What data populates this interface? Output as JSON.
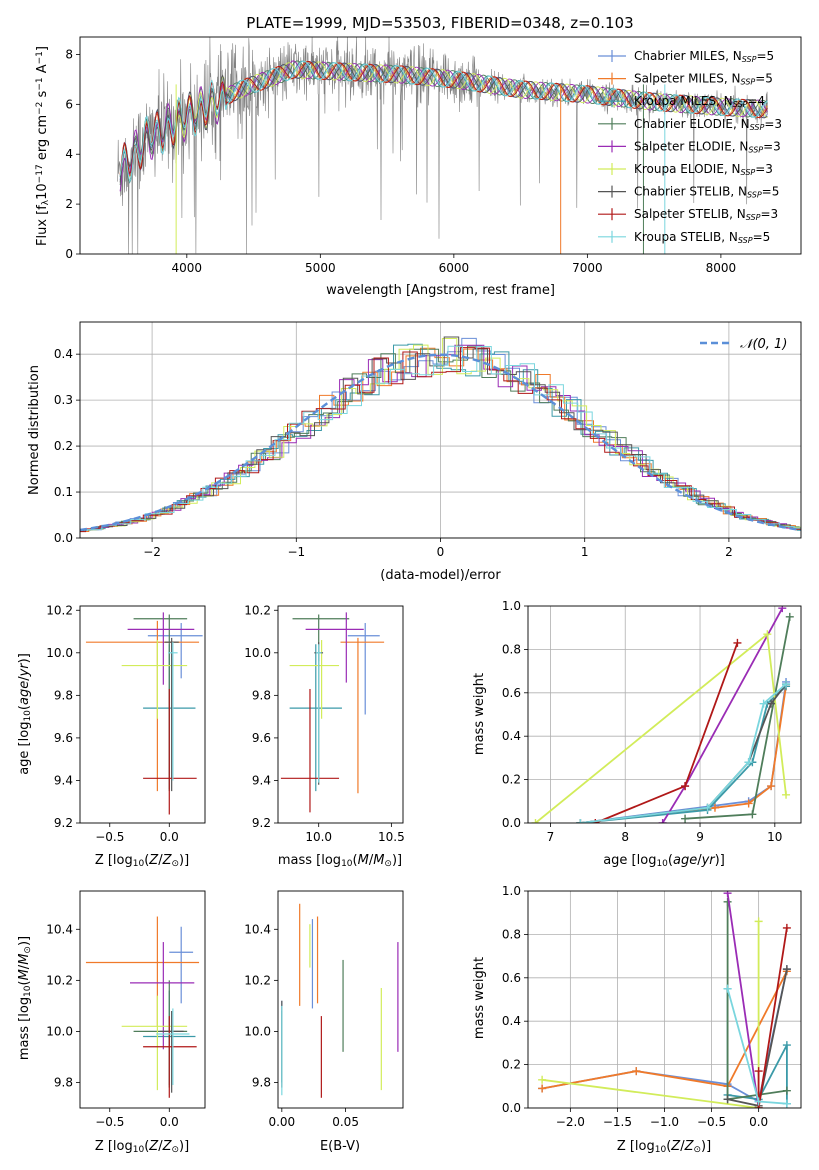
{
  "figure_title": "PLATE=1999, MJD=53503, FIBERID=0348, z=0.103",
  "series": [
    {
      "name": "Chabrier MILES",
      "sub": "SSP",
      "n": "5",
      "color": "#6a8fd8"
    },
    {
      "name": "Salpeter MILES",
      "sub": "SSP",
      "n": "5",
      "color": "#f07a2a"
    },
    {
      "name": "Kroupa MILES",
      "sub": "SSP",
      "n": "4",
      "color": "#3b9aa8"
    },
    {
      "name": "Chabrier ELODIE",
      "sub": "SSP",
      "n": "3",
      "color": "#4f7d5a"
    },
    {
      "name": "Salpeter ELODIE",
      "sub": "SSP",
      "n": "3",
      "color": "#9a2cb5"
    },
    {
      "name": "Kroupa ELODIE",
      "sub": "SSP",
      "n": "3",
      "color": "#d2ec5a"
    },
    {
      "name": "Chabrier STELIB",
      "sub": "SSP",
      "n": "5",
      "color": "#555555"
    },
    {
      "name": "Salpeter STELIB",
      "sub": "SSP",
      "n": "3",
      "color": "#b01818"
    },
    {
      "name": "Kroupa STELIB",
      "sub": "SSP",
      "n": "5",
      "color": "#7ad6de"
    }
  ],
  "chart_data": [
    {
      "id": "spectrum",
      "type": "line",
      "title": "PLATE=1999, MJD=53503, FIBERID=0348, z=0.103",
      "xlabel": "wavelength [Angstrom, rest frame]",
      "ylabel_pre": "Flux [f",
      "ylabel_sub": "λ",
      "ylabel_post": "10",
      "ylabel_sup1": "−17",
      "ylabel_mid": " erg cm",
      "ylabel_sup2": "−2",
      "ylabel_mid2": " s",
      "ylabel_sup3": "−1",
      "ylabel_end": " A",
      "ylabel_sup4": "−1",
      "ylabel_close": "]",
      "xlim": [
        3200,
        8600
      ],
      "ylim": [
        0,
        8.7
      ],
      "xticks": [
        4000,
        5000,
        6000,
        7000,
        8000
      ],
      "yticks": [
        0,
        2,
        4,
        6,
        8
      ],
      "data_start": 3480,
      "data_end": 8350,
      "continuum": [
        [
          3480,
          3.2
        ],
        [
          3700,
          4.6
        ],
        [
          4000,
          5.5
        ],
        [
          4400,
          6.6
        ],
        [
          4800,
          7.4
        ],
        [
          5200,
          7.3
        ],
        [
          5600,
          7.2
        ],
        [
          6000,
          7.0
        ],
        [
          6500,
          6.6
        ],
        [
          7000,
          6.4
        ],
        [
          7500,
          6.1
        ],
        [
          8000,
          5.9
        ],
        [
          8350,
          5.8
        ]
      ],
      "legend_position": "upper right"
    },
    {
      "id": "residuals",
      "type": "histogram",
      "xlabel": "(data-model)/error",
      "ylabel": "Normed distribution",
      "xlim": [
        -2.5,
        2.5
      ],
      "ylim": [
        0,
        0.47
      ],
      "xticks": [
        -2,
        -1,
        0,
        1,
        2
      ],
      "xtick_labels": [
        "−2",
        "−1",
        "0",
        "1",
        "2"
      ],
      "yticks": [
        0,
        0.1,
        0.2,
        0.3,
        0.4
      ],
      "ytick_labels": [
        "0.0",
        "0.1",
        "0.2",
        "0.3",
        "0.4"
      ],
      "bin_width": 0.1,
      "reference_curve": {
        "name": "𝒩(0, 1)",
        "mean": 0,
        "sigma": 1,
        "color": "#5b8fd8"
      },
      "grid": true,
      "legend_position": "upper right"
    },
    {
      "id": "age_vs_Z",
      "type": "errorbar",
      "xlabel": "Z [log10(Z/Z⊙)]",
      "ylabel": "age  [log10(age/yr)]",
      "xlim": [
        -0.75,
        0.3
      ],
      "ylim": [
        9.2,
        10.22
      ],
      "xticks": [
        -0.5,
        0.0
      ],
      "xtick_labels": [
        "−0.5",
        "0.0"
      ],
      "yticks": [
        9.2,
        9.4,
        9.6,
        9.8,
        10.0,
        10.2
      ],
      "ytick_labels": [
        "9.2",
        "9.4",
        "9.6",
        "9.8",
        "10.0",
        "10.2"
      ],
      "points": [
        {
          "series": 0,
          "x": 0.1,
          "xerr": [
            0.28,
            0.18
          ],
          "y": 10.08,
          "yerr": [
            0.2,
            0.06
          ]
        },
        {
          "series": 1,
          "x": -0.1,
          "xerr": [
            0.6,
            0.35
          ],
          "y": 10.05,
          "yerr": [
            0.7,
            0.1
          ]
        },
        {
          "series": 2,
          "x": 0.0,
          "xerr": [
            0.22,
            0.22
          ],
          "y": 9.74,
          "yerr": [
            0.38,
            0.3
          ]
        },
        {
          "series": 3,
          "x": 0.0,
          "xerr": [
            0.3,
            0.15
          ],
          "y": 10.16,
          "yerr": [
            0.81,
            0.02
          ]
        },
        {
          "series": 4,
          "x": -0.05,
          "xerr": [
            0.3,
            0.26
          ],
          "y": 10.11,
          "yerr": [
            0.26,
            0.08
          ]
        },
        {
          "series": 5,
          "x": -0.1,
          "xerr": [
            0.3,
            0.25
          ],
          "y": 9.94,
          "yerr": [
            0.25,
            0.12
          ]
        },
        {
          "series": 6,
          "x": 0.02,
          "xerr": [
            0.06,
            0.06
          ],
          "y": 10.05,
          "yerr": [
            0.7,
            0.02
          ]
        },
        {
          "series": 7,
          "x": 0.0,
          "xerr": [
            0.22,
            0.23
          ],
          "y": 9.41,
          "yerr": [
            0.17,
            0.42
          ]
        },
        {
          "series": 8,
          "x": 0.03,
          "xerr": [
            0.04,
            0.04
          ],
          "y": 10.0,
          "yerr": [
            0.6,
            0.05
          ]
        }
      ]
    },
    {
      "id": "age_vs_mass",
      "type": "errorbar",
      "xlabel": "mass [log10(M/M⊙)]",
      "xlim": [
        9.72,
        10.58
      ],
      "ylim": [
        9.2,
        10.22
      ],
      "xticks": [
        10.0,
        10.5
      ],
      "xtick_labels": [
        "10.0",
        "10.5"
      ],
      "yticks": [
        9.2,
        9.4,
        9.6,
        9.8,
        10.0,
        10.2
      ],
      "ytick_labels": [
        "9.2",
        "9.4",
        "9.6",
        "9.8",
        "10.0",
        "10.2"
      ],
      "points": [
        {
          "series": 0,
          "x": 10.32,
          "xerr": [
            0.12,
            0.1
          ],
          "y": 10.08,
          "yerr": [
            0.37,
            0.06
          ]
        },
        {
          "series": 1,
          "x": 10.27,
          "xerr": [
            0.12,
            0.18
          ],
          "y": 10.05,
          "yerr": [
            0.71,
            0.02
          ]
        },
        {
          "series": 2,
          "x": 9.98,
          "xerr": [
            0.18,
            0.18
          ],
          "y": 9.74,
          "yerr": [
            0.39,
            0.3
          ]
        },
        {
          "series": 3,
          "x": 10.0,
          "xerr": [
            0.18,
            0.21
          ],
          "y": 10.16,
          "yerr": [
            0.2,
            0.02
          ]
        },
        {
          "series": 4,
          "x": 10.19,
          "xerr": [
            0.28,
            0.12
          ],
          "y": 10.11,
          "yerr": [
            0.25,
            0.08
          ]
        },
        {
          "series": 5,
          "x": 10.02,
          "xerr": [
            0.22,
            0.12
          ],
          "y": 9.94,
          "yerr": [
            0.25,
            0.12
          ]
        },
        {
          "series": 6,
          "x": 10.0,
          "xerr": [
            0.03,
            0.03
          ],
          "y": 10.0,
          "yerr": [
            0.62,
            0.05
          ]
        },
        {
          "series": 7,
          "x": 9.94,
          "xerr": [
            0.2,
            0.2
          ],
          "y": 9.41,
          "yerr": [
            0.16,
            0.42
          ]
        },
        {
          "series": 8,
          "x": 10.0,
          "xerr": [
            0.02,
            0.02
          ],
          "y": 10.0,
          "yerr": [
            0.61,
            0.04
          ]
        }
      ]
    },
    {
      "id": "weight_vs_age",
      "type": "line",
      "xlabel": "age  [log10(age/yr)]",
      "ylabel": "mass weight",
      "xlim": [
        6.7,
        10.35
      ],
      "ylim": [
        0,
        1.0
      ],
      "xticks": [
        7,
        8,
        9,
        10
      ],
      "yticks": [
        0,
        0.2,
        0.4,
        0.6,
        0.8,
        1.0
      ],
      "ytick_labels": [
        "0.0",
        "0.2",
        "0.4",
        "0.6",
        "0.8",
        "1.0"
      ],
      "grid": true,
      "lines": [
        {
          "series": 0,
          "x": [
            7.4,
            9.2,
            9.65,
            9.95,
            10.15
          ],
          "y": [
            0.0,
            0.08,
            0.1,
            0.17,
            0.65
          ]
        },
        {
          "series": 1,
          "x": [
            7.4,
            9.2,
            9.65,
            9.95,
            10.15
          ],
          "y": [
            0.0,
            0.07,
            0.09,
            0.17,
            0.63
          ]
        },
        {
          "series": 2,
          "x": [
            7.4,
            9.1,
            9.7,
            9.9,
            10.15
          ],
          "y": [
            0.0,
            0.06,
            0.28,
            0.55,
            0.63
          ]
        },
        {
          "series": 3,
          "x": [
            8.8,
            9.7,
            10.2
          ],
          "y": [
            0.02,
            0.04,
            0.95
          ]
        },
        {
          "series": 4,
          "x": [
            8.5,
            8.8,
            10.1
          ],
          "y": [
            0.0,
            0.17,
            0.99
          ]
        },
        {
          "series": 5,
          "x": [
            6.8,
            9.9,
            10.15
          ],
          "y": [
            0.0,
            0.87,
            0.13
          ]
        },
        {
          "series": 6,
          "x": [
            7.4,
            9.1,
            9.65,
            9.95,
            10.15
          ],
          "y": [
            0.0,
            0.07,
            0.28,
            0.55,
            0.64
          ]
        },
        {
          "series": 7,
          "x": [
            7.6,
            8.8,
            9.5
          ],
          "y": [
            0.0,
            0.17,
            0.83
          ]
        },
        {
          "series": 8,
          "x": [
            7.4,
            9.1,
            9.65,
            9.85,
            10.15
          ],
          "y": [
            0.0,
            0.07,
            0.28,
            0.55,
            0.64
          ]
        }
      ]
    },
    {
      "id": "mass_vs_Z",
      "type": "errorbar",
      "xlabel": "Z [log10(Z/Z⊙)]",
      "ylabel": "mass [log10(M/M⊙)]",
      "xlim": [
        -0.75,
        0.3
      ],
      "ylim": [
        9.7,
        10.55
      ],
      "xticks": [
        -0.5,
        0.0
      ],
      "xtick_labels": [
        "−0.5",
        "0.0"
      ],
      "yticks": [
        9.8,
        10.0,
        10.2,
        10.4
      ],
      "ytick_labels": [
        "9.8",
        "10.0",
        "10.2",
        "10.4"
      ],
      "points": [
        {
          "series": 0,
          "x": 0.1,
          "xerr": [
            0.1,
            0.1
          ],
          "y": 10.31,
          "yerr": [
            0.2,
            0.1
          ]
        },
        {
          "series": 1,
          "x": -0.1,
          "xerr": [
            0.6,
            0.35
          ],
          "y": 10.27,
          "yerr": [
            0.25,
            0.18
          ]
        },
        {
          "series": 2,
          "x": 0.0,
          "xerr": [
            0.22,
            0.22
          ],
          "y": 9.98,
          "yerr": [
            0.19,
            0.18
          ]
        },
        {
          "series": 3,
          "x": 0.0,
          "xerr": [
            0.3,
            0.15
          ],
          "y": 10.0,
          "yerr": [
            0.22,
            0.2
          ]
        },
        {
          "series": 4,
          "x": -0.05,
          "xerr": [
            0.28,
            0.26
          ],
          "y": 10.19,
          "yerr": [
            0.26,
            0.16
          ]
        },
        {
          "series": 5,
          "x": -0.1,
          "xerr": [
            0.3,
            0.25
          ],
          "y": 10.02,
          "yerr": [
            0.25,
            0.12
          ]
        },
        {
          "series": 6,
          "x": 0.02,
          "xerr": [
            0.1,
            0.1
          ],
          "y": 10.0,
          "yerr": [
            0.24,
            0.08
          ]
        },
        {
          "series": 7,
          "x": 0.0,
          "xerr": [
            0.22,
            0.23
          ],
          "y": 9.94,
          "yerr": [
            0.2,
            0.12
          ]
        },
        {
          "series": 8,
          "x": 0.03,
          "xerr": [
            0.14,
            0.14
          ],
          "y": 9.99,
          "yerr": [
            0.2,
            0.1
          ]
        }
      ]
    },
    {
      "id": "mass_vs_ebv",
      "type": "errorbar",
      "xlabel": "E(B-V)",
      "xlim": [
        -0.003,
        0.095
      ],
      "ylim": [
        9.7,
        10.55
      ],
      "xticks": [
        0.0,
        0.05
      ],
      "xtick_labels": [
        "0.00",
        "0.05"
      ],
      "yticks": [
        9.8,
        10.0,
        10.2,
        10.4
      ],
      "ytick_labels": [
        "9.8",
        "10.0",
        "10.2",
        "10.4"
      ],
      "points": [
        {
          "series": 0,
          "x": 0.0,
          "y": 10.0,
          "yerr": [
            0.2,
            0.12
          ]
        },
        {
          "series": 1,
          "x": 0.028,
          "y": 10.31,
          "yerr": [
            0.2,
            0.14
          ]
        },
        {
          "series": 2,
          "x": 0.0,
          "y": 9.98,
          "yerr": [
            0.18,
            0.1
          ]
        },
        {
          "series": 3,
          "x": 0.048,
          "y": 10.1,
          "yerr": [
            0.18,
            0.18
          ]
        },
        {
          "series": 4,
          "x": 0.091,
          "y": 10.13,
          "yerr": [
            0.21,
            0.22
          ]
        },
        {
          "series": 5,
          "x": 0.078,
          "y": 9.97,
          "yerr": [
            0.2,
            0.2
          ]
        },
        {
          "series": 6,
          "x": 0.0,
          "y": 9.95,
          "yerr": [
            0.17,
            0.17
          ]
        },
        {
          "series": 7,
          "x": 0.031,
          "y": 9.9,
          "yerr": [
            0.16,
            0.16
          ]
        },
        {
          "series": 8,
          "x": 0.0,
          "y": 9.95,
          "yerr": [
            0.2,
            0.15
          ]
        },
        {
          "series": 5,
          "x": 0.022,
          "y": 10.3,
          "yerr": [
            0.05,
            0.12
          ]
        },
        {
          "series": 0,
          "x": 0.024,
          "y": 10.24,
          "yerr": [
            0.15,
            0.2
          ]
        },
        {
          "series": 1,
          "x": 0.014,
          "y": 10.3,
          "yerr": [
            0.2,
            0.2
          ]
        }
      ]
    },
    {
      "id": "weight_vs_Z",
      "type": "line",
      "xlabel": "Z [log10(Z/Z⊙)]",
      "ylabel": "mass weight",
      "xlim": [
        -2.45,
        0.45
      ],
      "ylim": [
        0,
        1.0
      ],
      "xticks": [
        -2.0,
        -1.5,
        -1.0,
        -0.5,
        0.0
      ],
      "xtick_labels": [
        "−2.0",
        "−1.5",
        "−1.0",
        "−0.5",
        "0.0"
      ],
      "yticks": [
        0,
        0.2,
        0.4,
        0.6,
        0.8,
        1.0
      ],
      "ytick_labels": [
        "0.0",
        "0.2",
        "0.4",
        "0.6",
        "0.8",
        "1.0"
      ],
      "grid": true,
      "lines": [
        {
          "series": 0,
          "x": [
            -2.3,
            -1.3,
            -0.33,
            0.0,
            0.3
          ],
          "y": [
            0.09,
            0.17,
            0.11,
            0.03,
            0.64
          ]
        },
        {
          "series": 1,
          "x": [
            -2.3,
            -1.3,
            -0.33,
            0.3
          ],
          "y": [
            0.09,
            0.17,
            0.1,
            0.63
          ]
        },
        {
          "series": 2,
          "x": [
            -0.33,
            -0.33,
            0.0,
            0.3,
            0.3
          ],
          "y": [
            0.55,
            0.06,
            0.04,
            0.29,
            0.02
          ]
        },
        {
          "series": 3,
          "x": [
            -0.33,
            -0.33,
            0.3
          ],
          "y": [
            0.95,
            0.04,
            0.08
          ]
        },
        {
          "series": 4,
          "x": [
            -0.33,
            0.0
          ],
          "y": [
            0.99,
            0.0
          ]
        },
        {
          "series": 5,
          "x": [
            -2.3,
            0.0,
            0.0
          ],
          "y": [
            0.13,
            0.0,
            0.86
          ]
        },
        {
          "series": 6,
          "x": [
            -0.33,
            0.0,
            0.3
          ],
          "y": [
            0.04,
            0.01,
            0.64
          ]
        },
        {
          "series": 7,
          "x": [
            0.0,
            0.0,
            0.3
          ],
          "y": [
            0.17,
            0.0,
            0.83
          ]
        },
        {
          "series": 8,
          "x": [
            -0.33,
            0.0,
            0.3
          ],
          "y": [
            0.55,
            0.03,
            0.02
          ]
        }
      ]
    }
  ]
}
